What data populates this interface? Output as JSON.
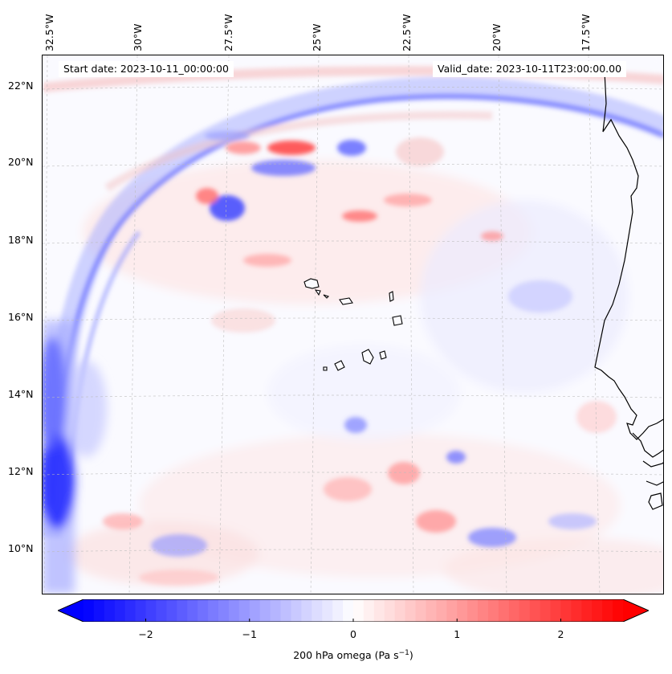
{
  "map": {
    "title_left": "Start date: 2023-10-11_00:00:00",
    "title_right": "Valid_date: 2023-10-11T23:00:00.00",
    "longitude_labels": [
      "32.5°W",
      "30°W",
      "27.5°W",
      "25°W",
      "22.5°W",
      "20°W",
      "17.5°W"
    ],
    "latitude_labels": [
      "22°N",
      "20°N",
      "18°N",
      "16°N",
      "14°N",
      "12°N",
      "10°N"
    ],
    "region": "Eastern tropical Atlantic, Cape Verde islands, West African coast",
    "field": "200 hPa vertical velocity (omega)"
  },
  "colorbar": {
    "ticks": [
      "−2",
      "−1",
      "0",
      "1",
      "2"
    ],
    "tick_values": [
      -2,
      -1,
      0,
      1,
      2
    ],
    "range": [
      -2.6,
      2.6
    ],
    "label_prefix": "200 hPa omega (Pa s",
    "label_exp": "−1",
    "label_suffix": ")",
    "negative_color": "#0000ff",
    "zero_color": "#ffffff",
    "positive_color": "#ff0000"
  }
}
